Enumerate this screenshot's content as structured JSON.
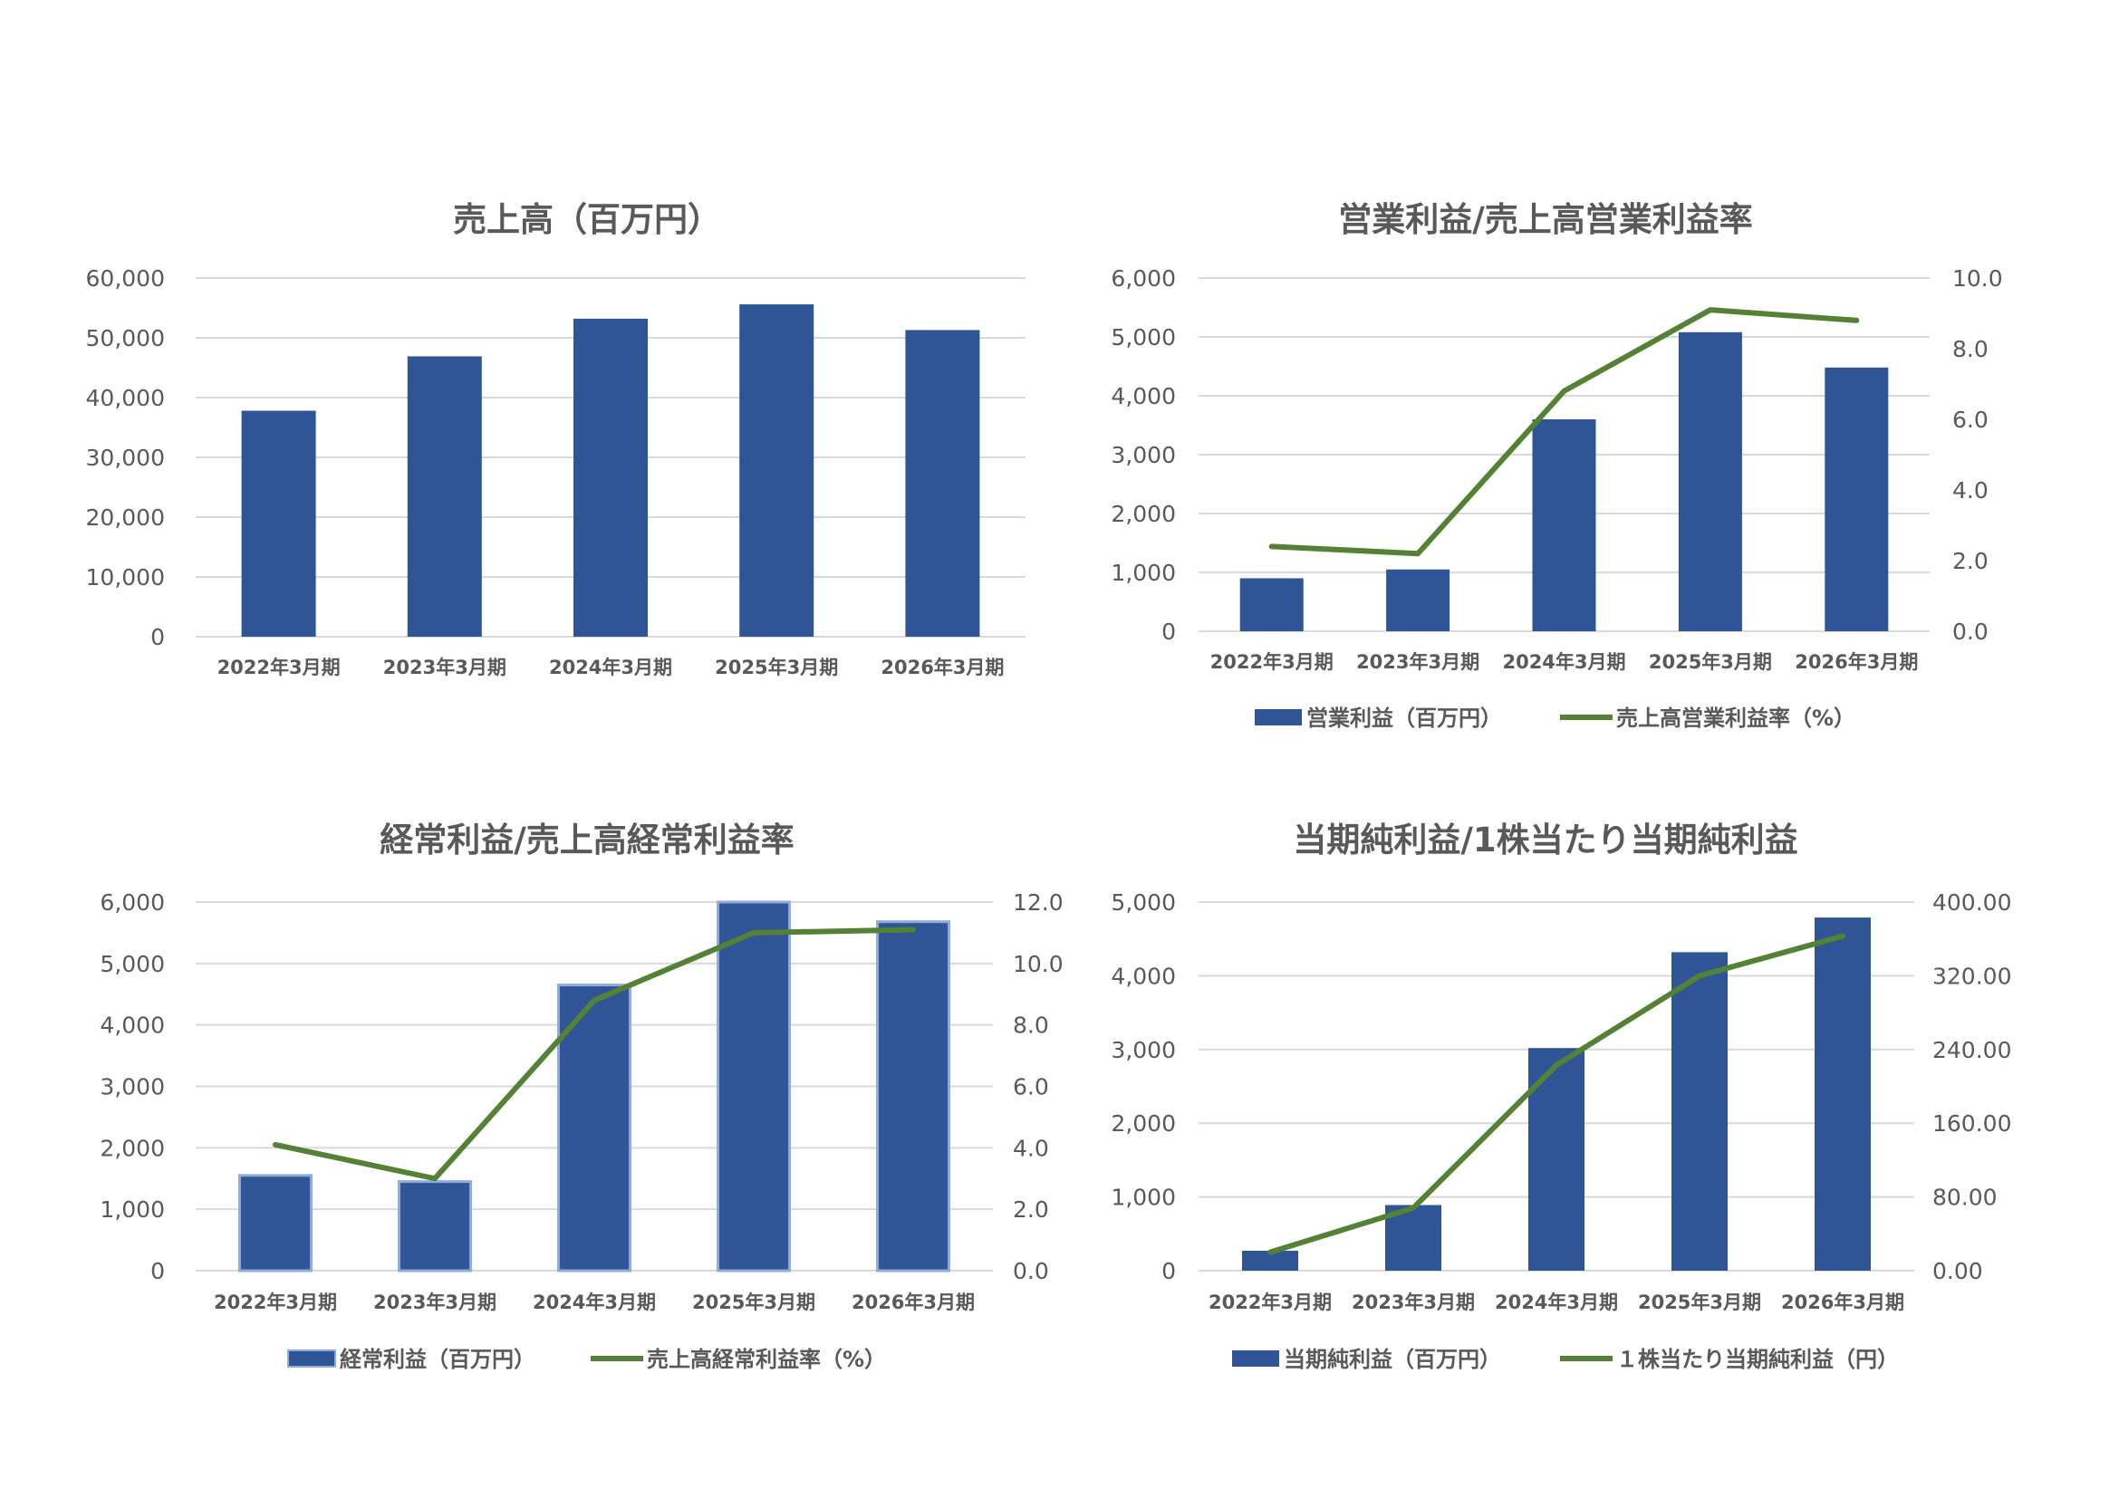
{
  "colors": {
    "bar": "#2f5597",
    "bar_edge": "#8faadc",
    "line": "#548235",
    "grid": "#d9d9d9",
    "text": "#595959"
  },
  "chart_data": [
    {
      "type": "bar",
      "title": "売上高（百万円）",
      "categories": [
        "2022年3月期",
        "2023年3月期",
        "2024年3月期",
        "2025年3月期",
        "2026年3月期"
      ],
      "ylim": [
        0,
        60000
      ],
      "yticks": [
        "0",
        "10,000",
        "20,000",
        "30,000",
        "40,000",
        "50,000",
        "60,000"
      ],
      "series": [
        {
          "kind": "bar",
          "values": [
            37800,
            46900,
            53200,
            55600,
            51300
          ]
        }
      ],
      "grid": true,
      "legend": "none"
    },
    {
      "type": "bar",
      "title": "営業利益/売上高営業利益率",
      "categories": [
        "2022年3月期",
        "2023年3月期",
        "2024年3月期",
        "2025年3月期",
        "2026年3月期"
      ],
      "ylim": [
        0,
        6000
      ],
      "yticks": [
        "0",
        "1,000",
        "2,000",
        "3,000",
        "4,000",
        "5,000",
        "6,000"
      ],
      "y2lim": [
        0,
        10
      ],
      "y2ticks": [
        "0.0",
        "2.0",
        "4.0",
        "6.0",
        "8.0",
        "10.0"
      ],
      "series": [
        {
          "name": "営業利益（百万円）",
          "kind": "bar",
          "axis": "left",
          "values": [
            900,
            1050,
            3600,
            5080,
            4480
          ]
        },
        {
          "name": "売上高営業利益率（%）",
          "kind": "line",
          "axis": "right",
          "values": [
            2.4,
            2.2,
            6.8,
            9.1,
            8.8
          ]
        }
      ],
      "grid": true,
      "legend": "bottom"
    },
    {
      "type": "bar",
      "title": "経常利益/売上高経常利益率",
      "categories": [
        "2022年3月期",
        "2023年3月期",
        "2024年3月期",
        "2025年3月期",
        "2026年3月期"
      ],
      "ylim": [
        0,
        6000
      ],
      "yticks": [
        "0",
        "1,000",
        "2,000",
        "3,000",
        "4,000",
        "5,000",
        "6,000"
      ],
      "y2lim": [
        0,
        12
      ],
      "y2ticks": [
        "0.0",
        "2.0",
        "4.0",
        "6.0",
        "8.0",
        "10.0",
        "12.0"
      ],
      "series": [
        {
          "name": "経常利益（百万円）",
          "kind": "bar",
          "axis": "left",
          "values": [
            1550,
            1450,
            4650,
            6000,
            5680
          ]
        },
        {
          "name": "売上高経常利益率（%）",
          "kind": "line",
          "axis": "right",
          "values": [
            4.1,
            3.0,
            8.8,
            11.0,
            11.1
          ]
        }
      ],
      "grid": true,
      "legend": "bottom"
    },
    {
      "type": "bar",
      "title": "当期純利益/1株当たり当期純利益",
      "categories": [
        "2022年3月期",
        "2023年3月期",
        "2024年3月期",
        "2025年3月期",
        "2026年3月期"
      ],
      "ylim": [
        0,
        5000
      ],
      "yticks": [
        "0",
        "1,000",
        "2,000",
        "3,000",
        "4,000",
        "5,000"
      ],
      "y2lim": [
        0,
        400
      ],
      "y2ticks": [
        "0.00",
        "80.00",
        "160.00",
        "240.00",
        "320.00",
        "400.00"
      ],
      "series": [
        {
          "name": "当期純利益（百万円）",
          "kind": "bar",
          "axis": "left",
          "values": [
            270,
            890,
            3020,
            4320,
            4790
          ]
        },
        {
          "name": "１株当たり当期純利益（円）",
          "kind": "line",
          "axis": "right",
          "values": [
            20,
            68,
            223,
            320,
            363
          ]
        }
      ],
      "grid": true,
      "legend": "bottom"
    }
  ]
}
